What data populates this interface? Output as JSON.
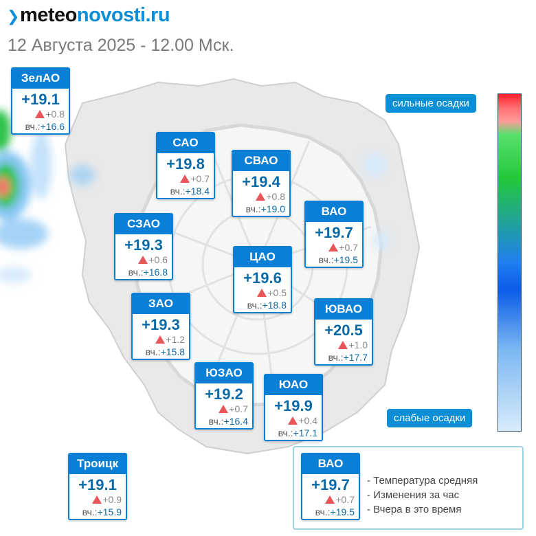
{
  "brand": {
    "prefix": "meteo",
    "suffix": "novosti.ru"
  },
  "subtitle": "12 Августа 2025 - 12.00 Мск.",
  "precip_scale": {
    "high": "сильные осадки",
    "low": "слабые осадки"
  },
  "colors": {
    "accent": "#0a7fd6",
    "temp": "#0a6aa8",
    "rise": "#e8565a"
  },
  "yesterday_prefix": "вч.:",
  "districts": [
    {
      "name": "ЗелАО",
      "temp": "+19.1",
      "change": "+0.8",
      "yesterday": "+16.6"
    },
    {
      "name": "САО",
      "temp": "+19.8",
      "change": "+0.7",
      "yesterday": "+18.4"
    },
    {
      "name": "СВАО",
      "temp": "+19.4",
      "change": "+0.8",
      "yesterday": "+19.0"
    },
    {
      "name": "ВАО",
      "temp": "+19.7",
      "change": "+0.7",
      "yesterday": "+19.5"
    },
    {
      "name": "СЗАО",
      "temp": "+19.3",
      "change": "+0.6",
      "yesterday": "+16.8"
    },
    {
      "name": "ЦАО",
      "temp": "+19.6",
      "change": "+0.5",
      "yesterday": "+18.8"
    },
    {
      "name": "ЗАО",
      "temp": "+19.3",
      "change": "+1.2",
      "yesterday": "+15.8"
    },
    {
      "name": "ЮВАО",
      "temp": "+20.5",
      "change": "+1.0",
      "yesterday": "+17.7"
    },
    {
      "name": "ЮЗАО",
      "temp": "+19.2",
      "change": "+0.7",
      "yesterday": "+16.4"
    },
    {
      "name": "ЮАО",
      "temp": "+19.9",
      "change": "+0.4",
      "yesterday": "+17.1"
    },
    {
      "name": "Троицк",
      "temp": "+19.1",
      "change": "+0.9",
      "yesterday": "+15.9"
    }
  ],
  "legend": {
    "example": {
      "name": "ВАО",
      "temp": "+19.7",
      "change": "+0.7",
      "yesterday": "+19.5"
    },
    "lines": [
      "- Температура средняя",
      "- Изменения за час",
      "- Вчера в это время"
    ]
  }
}
